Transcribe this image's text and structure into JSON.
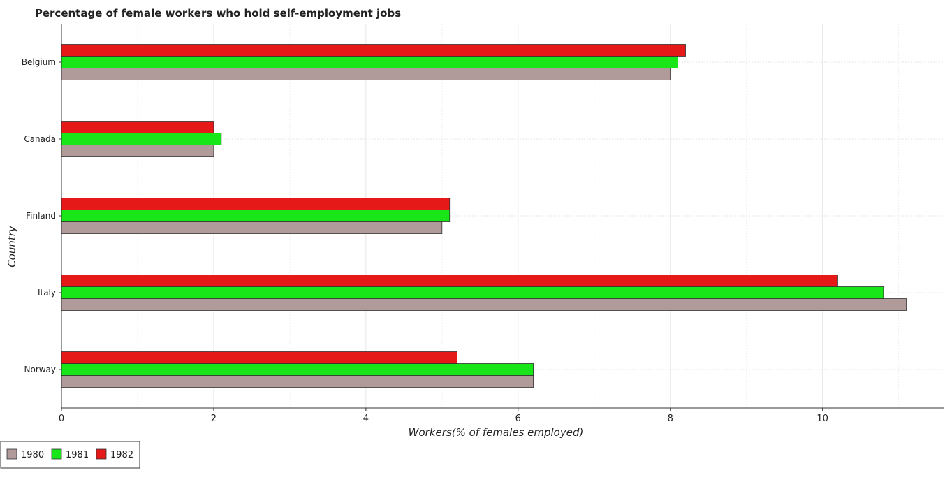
{
  "chart_data": {
    "type": "bar",
    "orientation": "horizontal",
    "title": "Percentage of female workers who hold self-employment jobs",
    "xlabel": "Workers(% of females employed)",
    "ylabel": "Country",
    "categories": [
      "Belgium",
      "Canada",
      "Finland",
      "Italy",
      "Norway"
    ],
    "series": [
      {
        "name": "1980",
        "color": "#b09a9a",
        "values": [
          8.0,
          2.0,
          5.0,
          11.1,
          6.2
        ]
      },
      {
        "name": "1981",
        "color": "#19e619",
        "values": [
          8.1,
          2.1,
          5.1,
          10.8,
          6.2
        ]
      },
      {
        "name": "1982",
        "color": "#e61919",
        "values": [
          8.2,
          2.0,
          5.1,
          10.2,
          5.2
        ]
      }
    ],
    "xlim": [
      0,
      11.6
    ],
    "xticks": [
      0,
      2,
      4,
      6,
      8,
      10
    ],
    "grid": true,
    "legend_position": "bottom-left"
  }
}
